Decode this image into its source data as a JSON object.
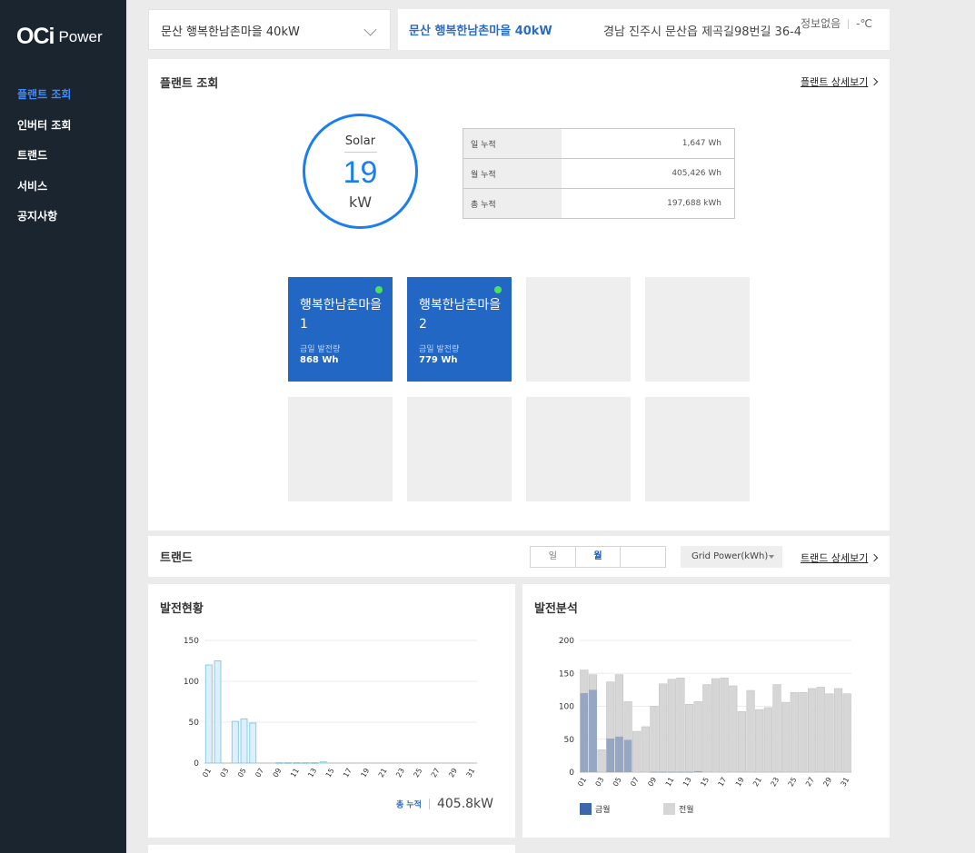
{
  "brand": {
    "logo_mark": "OCi",
    "logo_text": "Power"
  },
  "nav": {
    "items": [
      "플랜트 조회",
      "인버터 조회",
      "트랜드",
      "서비스",
      "공지사항"
    ],
    "active_index": 0
  },
  "plant_select": {
    "value": "문산 행복한남촌마을 40kW"
  },
  "plant_info": {
    "name": "문산 행복한남촌마을 40kW",
    "address": "경남 진주시 문산읍 제곡길98번길 36-4",
    "weather": "정보없음",
    "temperature": "-℃"
  },
  "plant_panel": {
    "title": "플랜트 조회",
    "detail_link": "플랜트 상세보기",
    "gauge": {
      "label": "Solar",
      "value": "19",
      "unit": "kW"
    },
    "summary": [
      {
        "label": "일 누적",
        "value": "1,647 Wh"
      },
      {
        "label": "월 누적",
        "value": "405,426 Wh"
      },
      {
        "label": "총 누적",
        "value": "197,688 kWh"
      }
    ],
    "inverters": [
      {
        "name": "행복한남촌마을1",
        "sub_label": "금일 발전량",
        "value": "868 Wh",
        "active": true
      },
      {
        "name": "행복한남촌마을2",
        "sub_label": "금일 발전량",
        "value": "779 Wh",
        "active": true
      },
      {
        "active": false
      },
      {
        "active": false
      },
      {
        "active": false
      },
      {
        "active": false
      },
      {
        "active": false
      },
      {
        "active": false
      }
    ]
  },
  "trend_bar": {
    "title": "트랜드",
    "tabs": [
      "일",
      "월",
      ""
    ],
    "active_tab": 1,
    "grid_select": "Grid Power(kWh)",
    "detail_link": "트랜드 상세보기"
  },
  "generation_status": {
    "title": "발전현황",
    "total_label": "총 누적",
    "total_value": "405.8kW"
  },
  "generation_analysis": {
    "title": "발전분석"
  },
  "chart_data": [
    {
      "type": "bar",
      "title": "발전현황",
      "categories": [
        "01",
        "02",
        "03",
        "04",
        "05",
        "06",
        "07",
        "08",
        "09",
        "10",
        "11",
        "12",
        "13",
        "14",
        "15",
        "16",
        "17",
        "18",
        "19",
        "20",
        "21",
        "22",
        "23",
        "24",
        "25",
        "26",
        "27",
        "28",
        "29",
        "30",
        "31"
      ],
      "tick_labels": [
        "01",
        "03",
        "05",
        "07",
        "09",
        "11",
        "13",
        "15",
        "17",
        "19",
        "21",
        "23",
        "25",
        "27",
        "29",
        "31"
      ],
      "values": [
        120,
        125,
        0,
        51,
        54,
        49,
        0,
        0,
        0.5,
        0.5,
        0.5,
        0.5,
        0.5,
        1.5,
        0,
        0,
        0,
        0,
        0,
        0,
        0,
        0,
        0,
        0,
        0,
        0,
        0,
        0,
        0,
        0,
        0
      ],
      "ylim": [
        0,
        150
      ],
      "yticks": [
        0,
        50,
        100,
        150
      ],
      "grid": true,
      "colors": {
        "fill": "#dcf0f9",
        "stroke": "#8dcae6"
      }
    },
    {
      "type": "bar",
      "title": "발전분석",
      "categories": [
        "01",
        "02",
        "03",
        "04",
        "05",
        "06",
        "07",
        "08",
        "09",
        "10",
        "11",
        "12",
        "13",
        "14",
        "15",
        "16",
        "17",
        "18",
        "19",
        "20",
        "21",
        "22",
        "23",
        "24",
        "25",
        "26",
        "27",
        "28",
        "29",
        "30",
        "31"
      ],
      "tick_labels": [
        "01",
        "03",
        "05",
        "07",
        "09",
        "11",
        "13",
        "15",
        "17",
        "19",
        "21",
        "23",
        "25",
        "27",
        "29",
        "31"
      ],
      "series": [
        {
          "name": "전월",
          "color": "#d6d6d6",
          "values": [
            155,
            148,
            34,
            137,
            148,
            107,
            62,
            69,
            100,
            134,
            141,
            143,
            103,
            107,
            133,
            142,
            143,
            131,
            92,
            124,
            95,
            98,
            133,
            106,
            121,
            121,
            127,
            129,
            119,
            127,
            119
          ]
        },
        {
          "name": "금월",
          "color": "#3d66ab",
          "values": [
            120,
            125,
            0,
            51,
            54,
            49,
            0,
            0,
            0.5,
            0.5,
            0.5,
            0.5,
            0.5,
            1.5,
            0,
            0,
            0,
            0,
            0,
            0,
            0,
            0,
            0,
            0,
            0,
            0,
            0,
            0,
            0,
            0,
            0
          ]
        }
      ],
      "ylim": [
        0,
        200
      ],
      "yticks": [
        0,
        50,
        100,
        150,
        200
      ],
      "grid": true,
      "legend": "bottom-left"
    }
  ]
}
